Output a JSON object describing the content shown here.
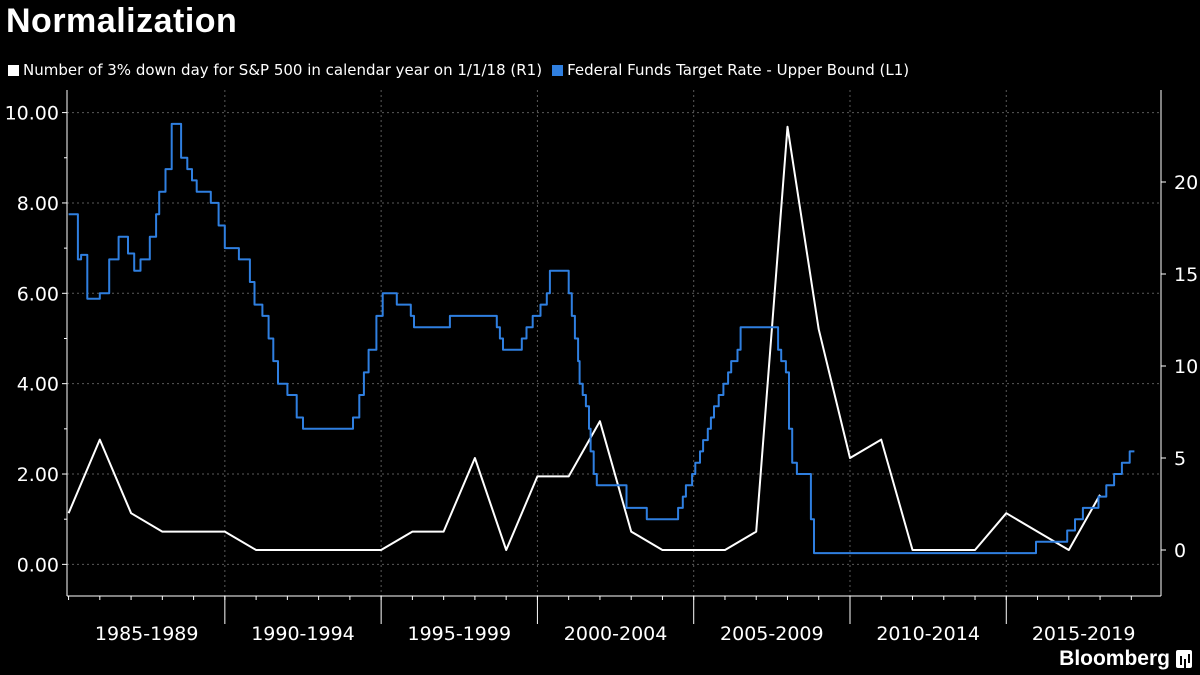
{
  "title": "Normalization",
  "brand": "Bloomberg",
  "chart_data": {
    "type": "line",
    "title": "Normalization",
    "categories": [
      "1985-1989",
      "1990-1994",
      "1995-1999",
      "2000-2004",
      "2005-2009",
      "2010-2014",
      "2015-2019"
    ],
    "x_range": [
      1984.95,
      2019.95
    ],
    "ylim_left": [
      -0.7,
      10.5
    ],
    "yticks_left": [
      0,
      2,
      4,
      6,
      8,
      10
    ],
    "ytick_labels_left": [
      "0.00",
      "2.00",
      "4.00",
      "6.00",
      "8.00",
      "10.00"
    ],
    "ylim_right": [
      -2.5,
      25
    ],
    "yticks_right": [
      0,
      5,
      10,
      15,
      20
    ],
    "ytick_labels_right": [
      "0",
      "5",
      "10",
      "15",
      "20"
    ],
    "grid": true,
    "legend_position": "top-left",
    "series": [
      {
        "name": "Number of 3% down day for S&P 500 in calendar year on 1/1/18 (R1)",
        "axis": "right",
        "color": "#ffffff",
        "step": false,
        "x": [
          1985,
          1986,
          1987,
          1988,
          1989,
          1990,
          1991,
          1992,
          1993,
          1994,
          1995,
          1996,
          1997,
          1998,
          1999,
          2000,
          2001,
          2002,
          2003,
          2004,
          2005,
          2006,
          2007,
          2008,
          2009,
          2010,
          2011,
          2012,
          2013,
          2014,
          2015,
          2016,
          2017,
          2018
        ],
        "y": [
          2,
          6,
          2,
          1,
          1,
          1,
          0,
          0,
          0,
          0,
          0,
          1,
          1,
          5,
          0,
          4,
          4,
          7,
          1,
          0,
          0,
          0,
          1,
          23,
          12,
          5,
          6,
          0,
          0,
          0,
          2,
          1,
          0,
          3
        ]
      },
      {
        "name": "Federal Funds Target Rate - Upper Bound  (L1)",
        "axis": "left",
        "color": "#2f7fe0",
        "step": true,
        "x": [
          1985.0,
          1985.3,
          1985.4,
          1985.6,
          1986.0,
          1986.3,
          1986.6,
          1986.9,
          1987.1,
          1987.3,
          1987.6,
          1987.8,
          1987.9,
          1988.1,
          1988.3,
          1988.45,
          1988.6,
          1988.8,
          1988.95,
          1989.1,
          1989.25,
          1989.4,
          1989.55,
          1989.8,
          1990.0,
          1990.45,
          1990.8,
          1990.95,
          1991.05,
          1991.2,
          1991.4,
          1991.55,
          1991.7,
          1991.85,
          1992.0,
          1992.3,
          1992.5,
          1992.7,
          1994.1,
          1994.3,
          1994.45,
          1994.6,
          1994.85,
          1995.05,
          1995.5,
          1995.95,
          1996.05,
          1997.2,
          1998.7,
          1998.8,
          1998.9,
          1999.5,
          1999.65,
          1999.85,
          2000.1,
          2000.3,
          2000.4,
          2001.0,
          2001.1,
          2001.2,
          2001.3,
          2001.35,
          2001.45,
          2001.55,
          2001.65,
          2001.7,
          2001.8,
          2001.9,
          2002.85,
          2003.5,
          2004.5,
          2004.65,
          2004.75,
          2004.95,
          2005.05,
          2005.2,
          2005.3,
          2005.45,
          2005.55,
          2005.65,
          2005.8,
          2005.95,
          2006.1,
          2006.2,
          2006.4,
          2006.5,
          2007.7,
          2007.8,
          2007.95,
          2008.05,
          2008.15,
          2008.3,
          2008.75,
          2008.85,
          2008.95,
          2015.95,
          2016.95,
          2017.2,
          2017.45,
          2017.95,
          2018.2,
          2018.45,
          2018.7,
          2018.95,
          2019.1
        ],
        "y": [
          7.75,
          6.75,
          6.85,
          5.88,
          6.0,
          6.75,
          7.25,
          6.88,
          6.5,
          6.75,
          7.25,
          7.75,
          8.25,
          8.75,
          9.75,
          9.75,
          9.0,
          8.75,
          8.5,
          8.25,
          8.25,
          8.25,
          8.0,
          7.5,
          7.0,
          6.75,
          6.25,
          5.75,
          5.75,
          5.5,
          5.0,
          4.5,
          4.0,
          4.0,
          3.75,
          3.25,
          3.0,
          3.0,
          3.25,
          3.75,
          4.25,
          4.75,
          5.5,
          6.0,
          5.75,
          5.5,
          5.25,
          5.5,
          5.25,
          5.0,
          4.75,
          5.0,
          5.25,
          5.5,
          5.75,
          6.0,
          6.5,
          6.0,
          5.5,
          5.0,
          4.5,
          4.0,
          3.75,
          3.5,
          3.0,
          2.5,
          2.0,
          1.75,
          1.25,
          1.0,
          1.25,
          1.5,
          1.75,
          2.0,
          2.25,
          2.5,
          2.75,
          3.0,
          3.25,
          3.5,
          3.75,
          4.0,
          4.25,
          4.5,
          4.75,
          5.25,
          4.75,
          4.5,
          4.25,
          3.0,
          2.25,
          2.0,
          1.0,
          0.25,
          0.25,
          0.5,
          0.75,
          1.0,
          1.25,
          1.5,
          1.75,
          2.0,
          2.25,
          2.5,
          2.5
        ]
      }
    ]
  }
}
